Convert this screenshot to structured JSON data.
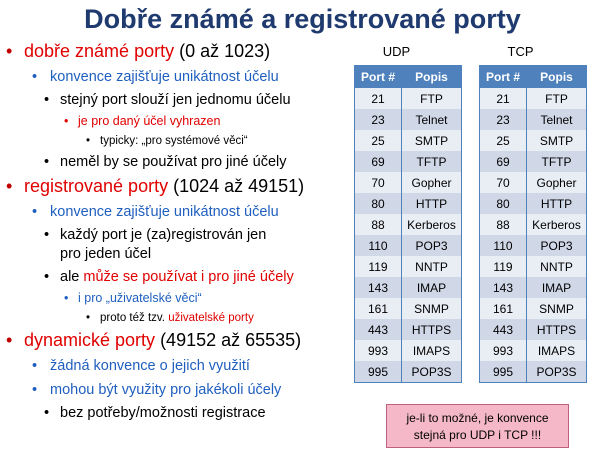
{
  "title": "Dobře známé a registrované porty",
  "bullets": {
    "well_known": {
      "prefix": "dobře známé porty",
      "suffix": " (0 až 1023)"
    },
    "wk_convention": "konvence zajišťuje unikátnost účelu",
    "wk_same_port": "stejný port slouží jen jednomu účelu",
    "wk_reserved": "je pro daný účel vyhrazen",
    "wk_typically": "typicky: „pro systémové věci“",
    "wk_no_other": "neměl by se používat pro jiné účely",
    "registered": {
      "prefix": "registrované porty",
      "suffix": " (1024 až 49151)"
    },
    "reg_convention": "konvence zajišťuje unikátnost účelu",
    "reg_each_port": "každý port je (za)registrován jen pro jeden účel",
    "reg_but": {
      "prefix": "ale ",
      "red": "může se používat i pro jiné účely"
    },
    "reg_user": "i pro „uživatelské věci“",
    "reg_so_called": {
      "prefix": "proto též tzv. ",
      "red": "uživatelské porty"
    },
    "dynamic": {
      "prefix": "dynamické porty",
      "suffix": " (49152 až 65535)"
    },
    "dyn_no_convention": "žádná konvence o jejich využití",
    "dyn_any_purpose": "mohou být využity pro jakékoli účely",
    "dyn_no_registration": "bez potřeby/možnosti registrace"
  },
  "udp_table": {
    "caption": "UDP",
    "headers": [
      "Port #",
      "Popis"
    ],
    "rows": [
      [
        "21",
        "FTP"
      ],
      [
        "23",
        "Telnet"
      ],
      [
        "25",
        "SMTP"
      ],
      [
        "69",
        "TFTP"
      ],
      [
        "70",
        "Gopher"
      ],
      [
        "80",
        "HTTP"
      ],
      [
        "88",
        "Kerberos"
      ],
      [
        "110",
        "POP3"
      ],
      [
        "119",
        "NNTP"
      ],
      [
        "143",
        "IMAP"
      ],
      [
        "161",
        "SNMP"
      ],
      [
        "443",
        "HTTPS"
      ],
      [
        "993",
        "IMAPS"
      ],
      [
        "995",
        "POP3S"
      ]
    ]
  },
  "tcp_table": {
    "caption": "TCP",
    "headers": [
      "Port #",
      "Popis"
    ],
    "rows": [
      [
        "21",
        "FTP"
      ],
      [
        "23",
        "Telnet"
      ],
      [
        "25",
        "SMTP"
      ],
      [
        "69",
        "TFTP"
      ],
      [
        "70",
        "Gopher"
      ],
      [
        "80",
        "HTTP"
      ],
      [
        "88",
        "Kerberos"
      ],
      [
        "110",
        "POP3"
      ],
      [
        "119",
        "NNTP"
      ],
      [
        "143",
        "IMAP"
      ],
      [
        "161",
        "SNMP"
      ],
      [
        "443",
        "HTTPS"
      ],
      [
        "993",
        "IMAPS"
      ],
      [
        "995",
        "POP3S"
      ]
    ]
  },
  "note": {
    "line1": "je-li to možné, je konvence",
    "line2": "stejná pro UDP i TCP !!!"
  }
}
